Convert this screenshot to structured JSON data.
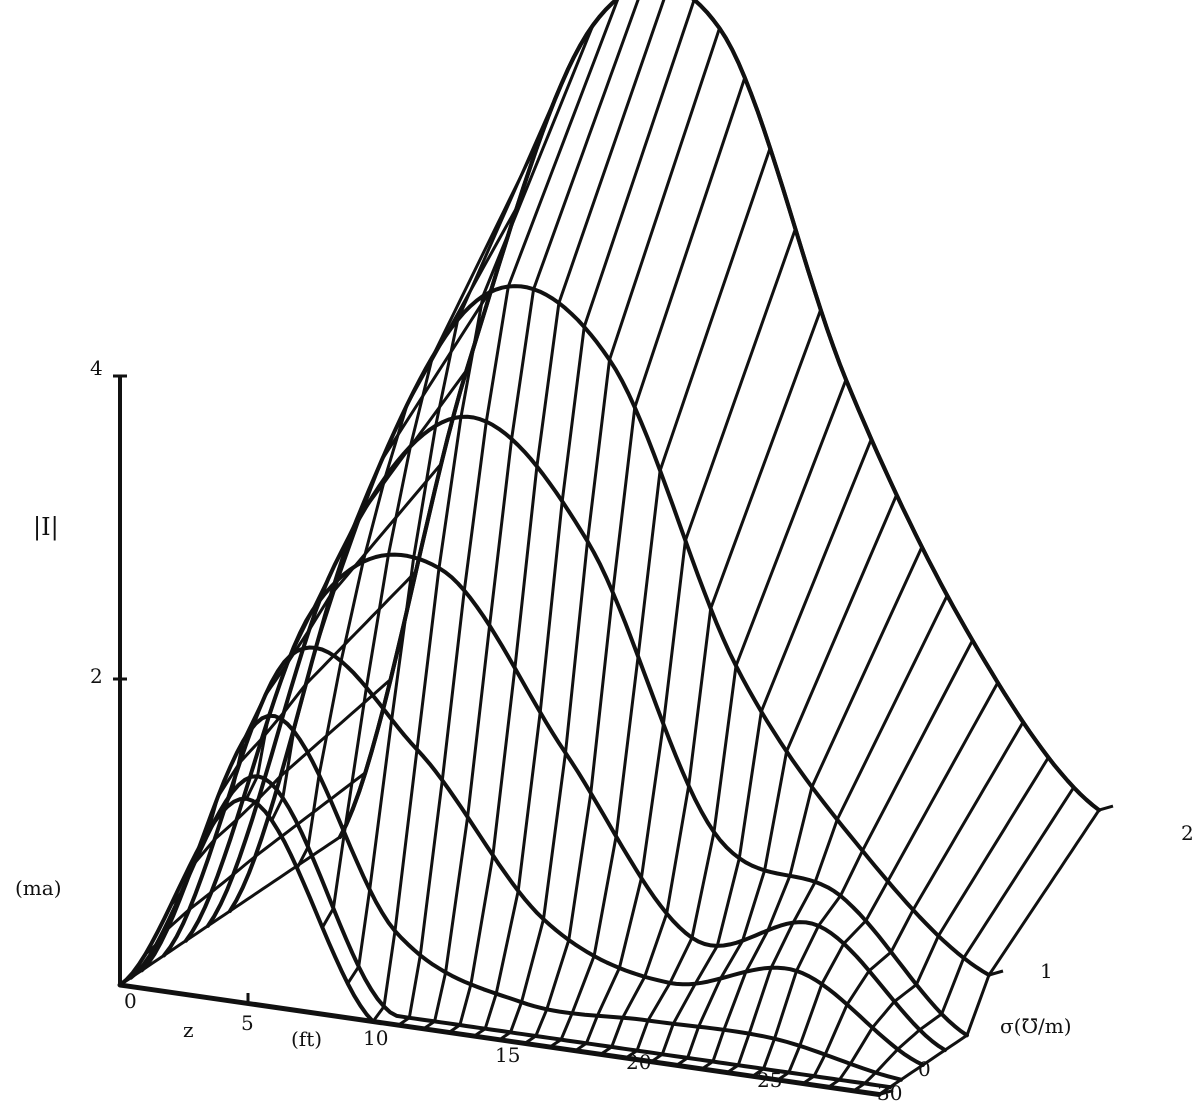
{
  "chart_data": {
    "type": "surface",
    "title": "",
    "ylabel": "|I|",
    "yunit": "(ma)",
    "xlabel": "z",
    "xunit": "(ft)",
    "depthlabel": "σ(℧/m)",
    "ytick_labels": [
      "4",
      "2"
    ],
    "xtick_labels": [
      "0",
      "5",
      "10",
      "15",
      "20",
      "25",
      "30"
    ],
    "depthtick_labels": [
      "0",
      "1",
      "2"
    ],
    "zlim": [
      0,
      30
    ],
    "sigmalim": [
      0,
      2
    ],
    "ylim": [
      0,
      4
    ],
    "sigma_grid": [
      0,
      0.1,
      0.2,
      0.3,
      0.4,
      0.5,
      0.6,
      0.7,
      0.8,
      0.9,
      1.0,
      1.1,
      1.2,
      1.3,
      1.4,
      1.5,
      1.6,
      1.7,
      1.8,
      1.9,
      2.0
    ],
    "series": [
      {
        "sigma": 0.0,
        "z": [
          0,
          5,
          10,
          15,
          20,
          25,
          30
        ],
        "values": [
          0,
          1.35,
          0,
          0,
          0,
          0,
          0
        ]
      },
      {
        "sigma": 0.1,
        "z": [
          0,
          5,
          10,
          15,
          20,
          25,
          30
        ],
        "values": [
          0,
          1.45,
          0.05,
          0,
          0,
          0,
          0
        ]
      },
      {
        "sigma": 0.2,
        "z": [
          0,
          5,
          10,
          15,
          20,
          25,
          30
        ],
        "values": [
          0,
          1.8,
          0.5,
          0.15,
          0.15,
          0.15,
          0
        ]
      },
      {
        "sigma": 0.4,
        "z": [
          0,
          5,
          10,
          15,
          20,
          25,
          30
        ],
        "values": [
          0,
          2.1,
          1.6,
          0.6,
          0.3,
          0.5,
          0
        ]
      },
      {
        "sigma": 0.6,
        "z": [
          0,
          5,
          10,
          15,
          20,
          25,
          30
        ],
        "values": [
          0,
          2.3,
          2.7,
          1.6,
          0.5,
          0.7,
          0
        ]
      },
      {
        "sigma": 0.8,
        "z": [
          0,
          5,
          10,
          15,
          20,
          25,
          30
        ],
        "values": [
          0,
          2.5,
          3.6,
          2.9,
          1.1,
          0.8,
          0
        ]
      },
      {
        "sigma": 1.0,
        "z": [
          0,
          5,
          10,
          15,
          20,
          25,
          30
        ],
        "values": [
          0,
          2.7,
          4.3,
          4.0,
          2.1,
          1.0,
          0.3
        ]
      },
      {
        "sigma": 2.0,
        "z": [
          0,
          5,
          10,
          15,
          20,
          25,
          30
        ],
        "values": [
          0,
          3.2,
          5.6,
          5.7,
          3.5,
          1.9,
          0.9
        ]
      }
    ]
  }
}
